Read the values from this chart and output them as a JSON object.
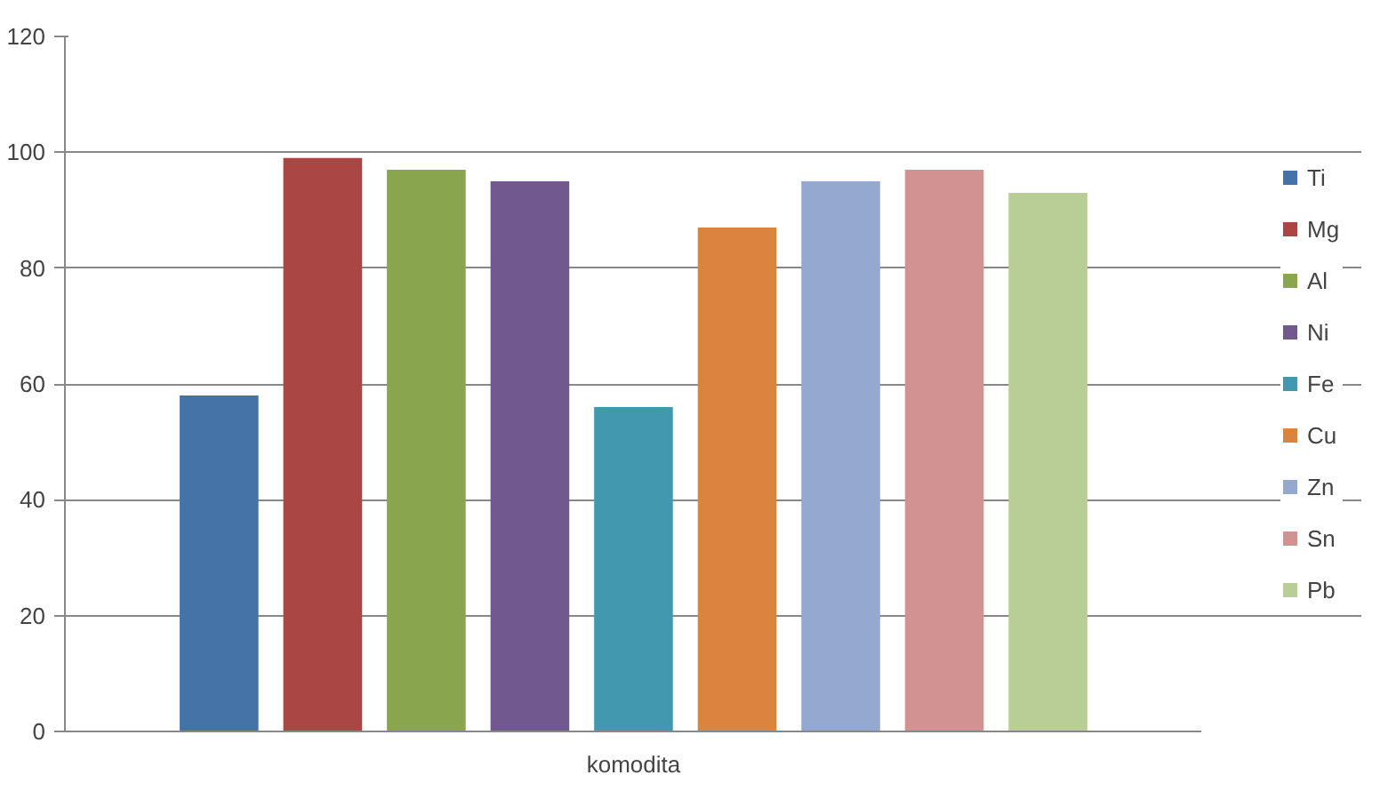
{
  "chart_data": {
    "type": "bar",
    "categories": [
      "komodita"
    ],
    "series": [
      {
        "name": "Ti",
        "color": "#4572a7",
        "values": [
          58
        ]
      },
      {
        "name": "Mg",
        "color": "#aa4643",
        "values": [
          99
        ]
      },
      {
        "name": "Al",
        "color": "#89a54e",
        "values": [
          97
        ]
      },
      {
        "name": "Ni",
        "color": "#71588f",
        "values": [
          95
        ]
      },
      {
        "name": "Fe",
        "color": "#4198af",
        "values": [
          56
        ]
      },
      {
        "name": "Cu",
        "color": "#db843d",
        "values": [
          87
        ]
      },
      {
        "name": "Zn",
        "color": "#93a9cf",
        "values": [
          95
        ]
      },
      {
        "name": "Sn",
        "color": "#d19392",
        "values": [
          97
        ]
      },
      {
        "name": "Pb",
        "color": "#b9cd96",
        "values": [
          93
        ]
      }
    ],
    "ylim": [
      0,
      120
    ],
    "yticks": [
      0,
      20,
      40,
      60,
      80,
      100,
      120
    ],
    "grid": "y",
    "legend": "right"
  }
}
